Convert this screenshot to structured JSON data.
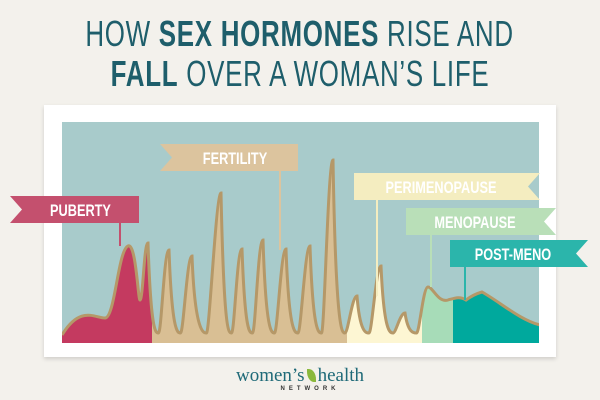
{
  "title": {
    "line1": [
      {
        "text": "HOW ",
        "bold": false
      },
      {
        "text": "SEX HORMONES",
        "bold": true
      },
      {
        "text": " RISE AND",
        "bold": false
      }
    ],
    "line2": [
      {
        "text": "FALL",
        "bold": true
      },
      {
        "text": " OVER A WOMAN’S LIFE",
        "bold": false
      }
    ]
  },
  "stages": [
    {
      "label": "PUBERTY",
      "color": "#c43a60",
      "banner_color": "#c4506e"
    },
    {
      "label": "FERTILITY",
      "color": "#d9bf94",
      "banner_color": "#dcc49e"
    },
    {
      "label": "PERIMENOPAUSE",
      "color": "#fdf6d3",
      "banner_color": "#f4edc0"
    },
    {
      "label": "MENOPAUSE",
      "color": "#a7dcb8",
      "banner_color": "#b9dfb8"
    },
    {
      "label": "POST-MENO",
      "color": "#00a99d",
      "banner_color": "#2bb5ab"
    }
  ],
  "colors": {
    "title": "#1e5e6b",
    "panel_background": "#a8cbcb",
    "line": "#b59868"
  },
  "logo": {
    "main_left": "women’s",
    "main_right": "health",
    "sub": "NETWORK"
  }
}
